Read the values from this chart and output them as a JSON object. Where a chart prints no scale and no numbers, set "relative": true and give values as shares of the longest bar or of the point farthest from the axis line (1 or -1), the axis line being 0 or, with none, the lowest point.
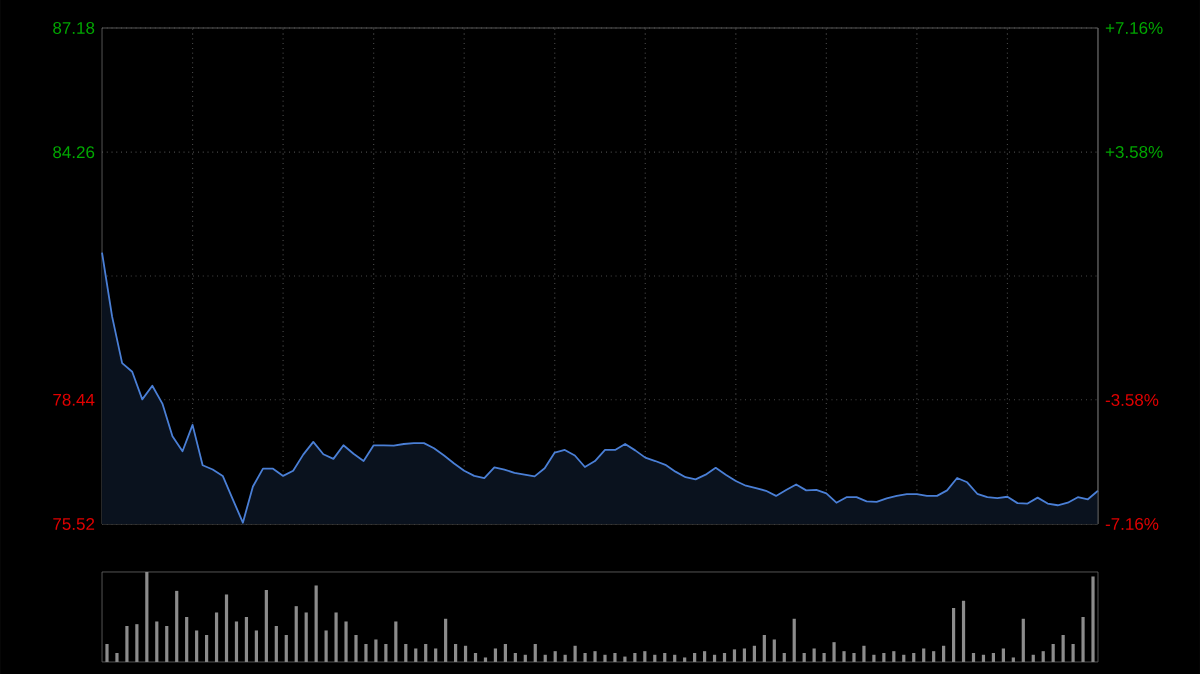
{
  "chart_data": [
    {
      "type": "area",
      "color": "#4a7fd6",
      "categories": [
        null,
        null,
        null,
        null,
        null,
        null,
        null,
        null,
        null,
        null,
        null,
        null,
        null,
        null,
        null,
        null,
        null,
        null,
        null,
        null,
        null,
        null,
        null,
        null,
        null,
        null,
        null,
        null,
        null,
        null,
        null,
        null,
        null,
        null,
        null,
        null,
        null,
        null,
        null,
        null,
        null,
        null,
        null,
        null,
        null,
        null,
        null,
        null,
        null,
        null,
        null,
        null,
        null,
        null,
        null,
        null,
        null,
        null,
        null,
        null,
        null,
        null,
        null,
        null,
        null,
        null,
        null,
        null,
        null,
        null,
        null,
        null,
        null,
        null,
        null,
        null,
        null,
        null,
        null,
        null,
        null,
        null,
        null,
        null,
        null,
        null,
        null,
        null,
        null,
        null,
        null,
        null,
        null,
        null,
        null,
        null,
        null,
        null,
        null,
        null
      ],
      "values": [
        81.9,
        80.4,
        79.3,
        79.1,
        78.45,
        78.77,
        78.35,
        77.58,
        77.23,
        77.85,
        76.9,
        76.8,
        76.65,
        76.1,
        75.55,
        76.4,
        76.82,
        76.82,
        76.65,
        76.77,
        77.15,
        77.45,
        77.16,
        77.05,
        77.37,
        77.17,
        77.0,
        77.37,
        77.37,
        77.36,
        77.4,
        77.42,
        77.42,
        77.3,
        77.13,
        76.94,
        76.77,
        76.65,
        76.6,
        76.85,
        76.8,
        76.72,
        76.68,
        76.64,
        76.83,
        77.2,
        77.26,
        77.13,
        76.86,
        77.0,
        77.26,
        77.26,
        77.4,
        77.25,
        77.08,
        77.0,
        76.91,
        76.75,
        76.62,
        76.57,
        76.68,
        76.84,
        76.68,
        76.53,
        76.42,
        76.36,
        76.3,
        76.18,
        76.32,
        76.45,
        76.31,
        76.32,
        76.24,
        76.02,
        76.15,
        76.15,
        76.05,
        76.04,
        76.12,
        76.18,
        76.22,
        76.22,
        76.18,
        76.18,
        76.31,
        76.6,
        76.5,
        76.23,
        76.15,
        76.13,
        76.16,
        76.01,
        76.0,
        76.14,
        76.0,
        75.96,
        76.02,
        76.15,
        76.1,
        76.3
      ],
      "ylim": [
        75.52,
        87.18
      ],
      "yticks": [
        75.52,
        78.44,
        {
          "value": 81.35,
          "label": null
        },
        84.26,
        87.18
      ],
      "y2lim": [
        -7.16,
        7.16
      ],
      "y2ticks": [
        {
          "value": -7.16,
          "label": "-7.16%"
        },
        {
          "value": -3.58,
          "label": "-3.58%"
        },
        {
          "value": 0,
          "label": null
        },
        {
          "value": 3.58,
          "label": "+3.58%"
        },
        {
          "value": 7.16,
          "label": "+7.16%"
        }
      ],
      "grid": true,
      "tick_labels": "y"
    },
    {
      "type": "bar",
      "relative": true,
      "color": "#8c8c8c",
      "categories": [
        null,
        null,
        null,
        null,
        null,
        null,
        null,
        null,
        null,
        null,
        null,
        null,
        null,
        null,
        null,
        null,
        null,
        null,
        null,
        null,
        null,
        null,
        null,
        null,
        null,
        null,
        null,
        null,
        null,
        null,
        null,
        null,
        null,
        null,
        null,
        null,
        null,
        null,
        null,
        null,
        null,
        null,
        null,
        null,
        null,
        null,
        null,
        null,
        null,
        null,
        null,
        null,
        null,
        null,
        null,
        null,
        null,
        null,
        null,
        null,
        null,
        null,
        null,
        null,
        null,
        null,
        null,
        null,
        null,
        null,
        null,
        null,
        null,
        null,
        null,
        null,
        null,
        null,
        null,
        null,
        null,
        null,
        null,
        null,
        null,
        null,
        null,
        null,
        null,
        null,
        null,
        null,
        null,
        null,
        null,
        null,
        null,
        null,
        null,
        null
      ],
      "values": [
        0.2,
        0.1,
        0.4,
        0.42,
        1.0,
        0.45,
        0.4,
        0.79,
        0.5,
        0.35,
        0.3,
        0.55,
        0.75,
        0.45,
        0.5,
        0.35,
        0.8,
        0.4,
        0.3,
        0.62,
        0.55,
        0.85,
        0.35,
        0.55,
        0.45,
        0.3,
        0.2,
        0.25,
        0.2,
        0.45,
        0.2,
        0.15,
        0.2,
        0.15,
        0.48,
        0.2,
        0.18,
        0.1,
        0.05,
        0.15,
        0.2,
        0.1,
        0.08,
        0.2,
        0.08,
        0.12,
        0.08,
        0.18,
        0.1,
        0.12,
        0.08,
        0.1,
        0.06,
        0.1,
        0.12,
        0.08,
        0.1,
        0.08,
        0.05,
        0.1,
        0.12,
        0.08,
        0.1,
        0.14,
        0.15,
        0.18,
        0.3,
        0.25,
        0.1,
        0.48,
        0.1,
        0.15,
        0.1,
        0.22,
        0.12,
        0.1,
        0.18,
        0.08,
        0.1,
        0.12,
        0.08,
        0.1,
        0.15,
        0.12,
        0.18,
        0.6,
        0.68,
        0.1,
        0.08,
        0.1,
        0.15,
        0.05,
        0.48,
        0.08,
        0.12,
        0.2,
        0.3,
        0.2,
        0.5,
        0.95
      ]
    }
  ]
}
